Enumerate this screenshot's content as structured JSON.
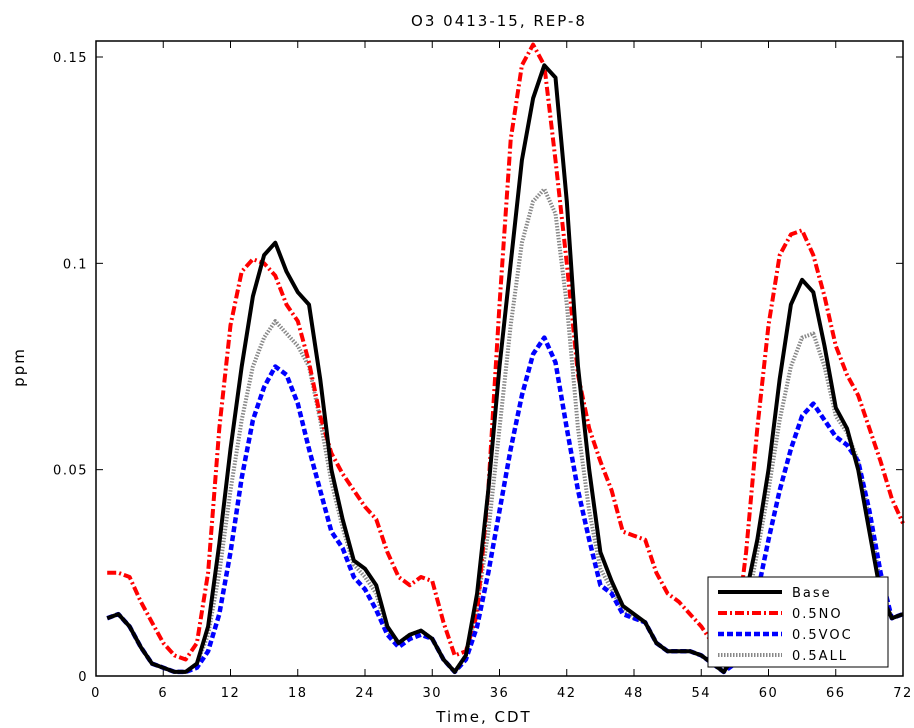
{
  "chart_data": {
    "type": "line",
    "title": "O3 0413-15, REP-8",
    "xlabel": "Time, CDT",
    "ylabel": "ppm",
    "xlim": [
      0,
      72
    ],
    "ylim": [
      0,
      0.155
    ],
    "xticks": [
      0,
      6,
      12,
      18,
      24,
      30,
      36,
      42,
      48,
      54,
      60,
      66,
      72
    ],
    "xtick_labels": [
      "0",
      "6",
      "12",
      "18",
      "24",
      "30",
      "36",
      "42",
      "48",
      "54",
      "60",
      "66",
      "72"
    ],
    "yticks": [
      0,
      0.05,
      0.1,
      0.15
    ],
    "ytick_labels": [
      "0",
      "0.05",
      "0.1",
      "0.15"
    ],
    "grid": false,
    "legend_position": "bottom-right",
    "series": [
      {
        "name": "Base",
        "color": "#000000",
        "style": "solid",
        "x": [
          1,
          2,
          3,
          4,
          5,
          6,
          7,
          8,
          9,
          10,
          11,
          12,
          13,
          14,
          15,
          16,
          17,
          18,
          19,
          20,
          21,
          22,
          23,
          24,
          25,
          26,
          27,
          28,
          29,
          30,
          31,
          32,
          33,
          34,
          35,
          36,
          37,
          38,
          39,
          40,
          41,
          42,
          43,
          44,
          45,
          46,
          47,
          48,
          49,
          50,
          51,
          52,
          53,
          54,
          55,
          56,
          57,
          58,
          59,
          60,
          61,
          62,
          63,
          64,
          65,
          66,
          67,
          68,
          69,
          70,
          71,
          72
        ],
        "values": [
          0.014,
          0.015,
          0.012,
          0.007,
          0.003,
          0.002,
          0.001,
          0.001,
          0.003,
          0.012,
          0.032,
          0.055,
          0.075,
          0.092,
          0.102,
          0.105,
          0.098,
          0.093,
          0.09,
          0.072,
          0.05,
          0.038,
          0.028,
          0.026,
          0.022,
          0.012,
          0.008,
          0.01,
          0.011,
          0.009,
          0.004,
          0.001,
          0.005,
          0.02,
          0.045,
          0.075,
          0.1,
          0.125,
          0.14,
          0.148,
          0.145,
          0.115,
          0.075,
          0.05,
          0.03,
          0.023,
          0.017,
          0.015,
          0.013,
          0.008,
          0.006,
          0.006,
          0.006,
          0.005,
          0.003,
          0.001,
          0.005,
          0.02,
          0.033,
          0.05,
          0.072,
          0.09,
          0.096,
          0.093,
          0.08,
          0.065,
          0.06,
          0.05,
          0.035,
          0.02,
          0.014,
          0.015
        ]
      },
      {
        "name": "0.5NO",
        "color": "#ff0000",
        "style": "dash-dot",
        "x": [
          1,
          2,
          3,
          4,
          5,
          6,
          7,
          8,
          9,
          10,
          11,
          12,
          13,
          14,
          15,
          16,
          17,
          18,
          19,
          20,
          21,
          22,
          23,
          24,
          25,
          26,
          27,
          28,
          29,
          30,
          31,
          32,
          33,
          34,
          35,
          36,
          37,
          38,
          39,
          40,
          41,
          42,
          43,
          44,
          45,
          46,
          47,
          48,
          49,
          50,
          51,
          52,
          53,
          54,
          55,
          56,
          57,
          58,
          59,
          60,
          61,
          62,
          63,
          64,
          65,
          66,
          67,
          68,
          69,
          70,
          71,
          72
        ],
        "values": [
          0.025,
          0.025,
          0.024,
          0.018,
          0.013,
          0.008,
          0.005,
          0.004,
          0.008,
          0.025,
          0.06,
          0.085,
          0.098,
          0.101,
          0.1,
          0.097,
          0.09,
          0.086,
          0.076,
          0.063,
          0.054,
          0.049,
          0.045,
          0.041,
          0.038,
          0.03,
          0.024,
          0.022,
          0.024,
          0.023,
          0.013,
          0.005,
          0.006,
          0.015,
          0.045,
          0.09,
          0.13,
          0.148,
          0.153,
          0.148,
          0.125,
          0.1,
          0.073,
          0.06,
          0.052,
          0.045,
          0.035,
          0.034,
          0.033,
          0.025,
          0.02,
          0.018,
          0.015,
          0.012,
          0.008,
          0.004,
          0.008,
          0.03,
          0.06,
          0.085,
          0.102,
          0.107,
          0.108,
          0.102,
          0.092,
          0.08,
          0.073,
          0.068,
          0.06,
          0.052,
          0.043,
          0.037
        ]
      },
      {
        "name": "0.5VOC",
        "color": "#0000ff",
        "style": "dashed",
        "x": [
          1,
          2,
          3,
          4,
          5,
          6,
          7,
          8,
          9,
          10,
          11,
          12,
          13,
          14,
          15,
          16,
          17,
          18,
          19,
          20,
          21,
          22,
          23,
          24,
          25,
          26,
          27,
          28,
          29,
          30,
          31,
          32,
          33,
          34,
          35,
          36,
          37,
          38,
          39,
          40,
          41,
          42,
          43,
          44,
          45,
          46,
          47,
          48,
          49,
          50,
          51,
          52,
          53,
          54,
          55,
          56,
          57,
          58,
          59,
          60,
          61,
          62,
          63,
          64,
          65,
          66,
          67,
          68,
          69,
          70,
          71,
          72
        ],
        "values": [
          0.014,
          0.015,
          0.012,
          0.007,
          0.003,
          0.002,
          0.001,
          0.001,
          0.002,
          0.006,
          0.015,
          0.03,
          0.048,
          0.062,
          0.07,
          0.075,
          0.073,
          0.066,
          0.055,
          0.045,
          0.035,
          0.031,
          0.024,
          0.021,
          0.016,
          0.01,
          0.007,
          0.009,
          0.01,
          0.009,
          0.004,
          0.001,
          0.004,
          0.012,
          0.025,
          0.04,
          0.055,
          0.068,
          0.078,
          0.082,
          0.076,
          0.06,
          0.045,
          0.033,
          0.022,
          0.02,
          0.015,
          0.014,
          0.013,
          0.008,
          0.006,
          0.006,
          0.006,
          0.005,
          0.003,
          0.001,
          0.003,
          0.01,
          0.02,
          0.033,
          0.045,
          0.055,
          0.063,
          0.066,
          0.062,
          0.058,
          0.056,
          0.052,
          0.04,
          0.025,
          0.014,
          0.015
        ]
      },
      {
        "name": "0.5ALL",
        "color": "#888888",
        "style": "dotted",
        "x": [
          1,
          2,
          3,
          4,
          5,
          6,
          7,
          8,
          9,
          10,
          11,
          12,
          13,
          14,
          15,
          16,
          17,
          18,
          19,
          20,
          21,
          22,
          23,
          24,
          25,
          26,
          27,
          28,
          29,
          30,
          31,
          32,
          33,
          34,
          35,
          36,
          37,
          38,
          39,
          40,
          41,
          42,
          43,
          44,
          45,
          46,
          47,
          48,
          49,
          50,
          51,
          52,
          53,
          54,
          55,
          56,
          57,
          58,
          59,
          60,
          61,
          62,
          63,
          64,
          65,
          66,
          67,
          68,
          69,
          70,
          71,
          72
        ],
        "values": [
          0.014,
          0.015,
          0.012,
          0.007,
          0.003,
          0.002,
          0.001,
          0.001,
          0.003,
          0.01,
          0.025,
          0.045,
          0.062,
          0.075,
          0.082,
          0.086,
          0.083,
          0.08,
          0.075,
          0.062,
          0.047,
          0.036,
          0.027,
          0.024,
          0.02,
          0.011,
          0.008,
          0.01,
          0.011,
          0.009,
          0.004,
          0.001,
          0.005,
          0.017,
          0.035,
          0.06,
          0.085,
          0.105,
          0.115,
          0.118,
          0.112,
          0.09,
          0.06,
          0.04,
          0.026,
          0.021,
          0.016,
          0.014,
          0.013,
          0.008,
          0.006,
          0.006,
          0.006,
          0.005,
          0.003,
          0.001,
          0.004,
          0.016,
          0.03,
          0.045,
          0.062,
          0.075,
          0.082,
          0.083,
          0.075,
          0.063,
          0.059,
          0.052,
          0.038,
          0.022,
          0.014,
          0.015
        ]
      }
    ]
  }
}
